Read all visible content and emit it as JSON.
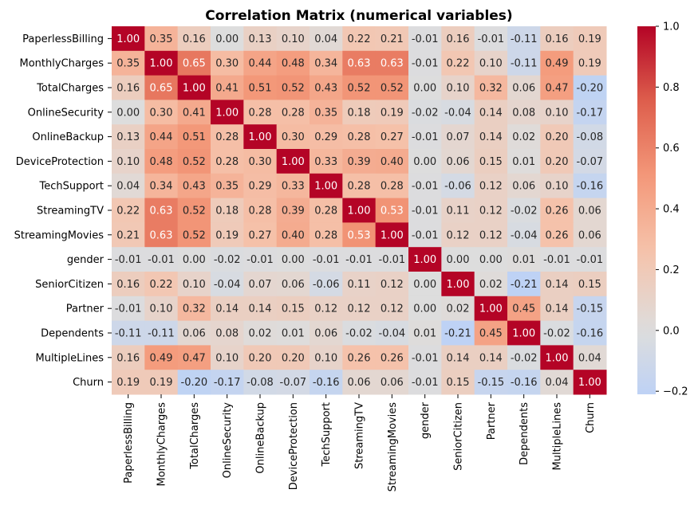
{
  "chart_data": {
    "type": "heatmap",
    "title": "Correlation Matrix (numerical variables)",
    "labels": [
      "PaperlessBilling",
      "MonthlyCharges",
      "TotalCharges",
      "OnlineSecurity",
      "OnlineBackup",
      "DeviceProtection",
      "TechSupport",
      "StreamingTV",
      "StreamingMovies",
      "gender",
      "SeniorCitizen",
      "Partner",
      "Dependents",
      "MultipleLines",
      "Churn"
    ],
    "values": [
      [
        1.0,
        0.35,
        0.16,
        -0.0,
        0.13,
        0.1,
        0.04,
        0.22,
        0.21,
        -0.01,
        0.16,
        -0.01,
        -0.11,
        0.16,
        0.19
      ],
      [
        0.35,
        1.0,
        0.65,
        0.3,
        0.44,
        0.48,
        0.34,
        0.63,
        0.63,
        -0.01,
        0.22,
        0.1,
        -0.11,
        0.49,
        0.19
      ],
      [
        0.16,
        0.65,
        1.0,
        0.41,
        0.51,
        0.52,
        0.43,
        0.52,
        0.52,
        -0.0,
        0.1,
        0.32,
        0.06,
        0.47,
        -0.2
      ],
      [
        -0.0,
        0.3,
        0.41,
        1.0,
        0.28,
        0.28,
        0.35,
        0.18,
        0.19,
        -0.02,
        -0.04,
        0.14,
        0.08,
        0.1,
        -0.17
      ],
      [
        0.13,
        0.44,
        0.51,
        0.28,
        1.0,
        0.3,
        0.29,
        0.28,
        0.27,
        -0.01,
        0.07,
        0.14,
        0.02,
        0.2,
        -0.08
      ],
      [
        0.1,
        0.48,
        0.52,
        0.28,
        0.3,
        1.0,
        0.33,
        0.39,
        0.4,
        -0.0,
        0.06,
        0.15,
        0.01,
        0.2,
        -0.07
      ],
      [
        0.04,
        0.34,
        0.43,
        0.35,
        0.29,
        0.33,
        1.0,
        0.28,
        0.28,
        -0.01,
        -0.06,
        0.12,
        0.06,
        0.1,
        -0.16
      ],
      [
        0.22,
        0.63,
        0.52,
        0.18,
        0.28,
        0.39,
        0.28,
        1.0,
        0.53,
        -0.01,
        0.11,
        0.12,
        -0.02,
        0.26,
        0.06
      ],
      [
        0.21,
        0.63,
        0.52,
        0.19,
        0.27,
        0.4,
        0.28,
        0.53,
        1.0,
        -0.01,
        0.12,
        0.12,
        -0.04,
        0.26,
        0.06
      ],
      [
        -0.01,
        -0.01,
        -0.0,
        -0.02,
        -0.01,
        -0.0,
        -0.01,
        -0.01,
        -0.01,
        1.0,
        -0.0,
        -0.0,
        0.01,
        -0.01,
        -0.01
      ],
      [
        0.16,
        0.22,
        0.1,
        -0.04,
        0.07,
        0.06,
        -0.06,
        0.11,
        0.12,
        -0.0,
        1.0,
        0.02,
        -0.21,
        0.14,
        0.15
      ],
      [
        -0.01,
        0.1,
        0.32,
        0.14,
        0.14,
        0.15,
        0.12,
        0.12,
        0.12,
        -0.0,
        0.02,
        1.0,
        0.45,
        0.14,
        -0.15
      ],
      [
        -0.11,
        -0.11,
        0.06,
        0.08,
        0.02,
        0.01,
        0.06,
        -0.02,
        -0.04,
        0.01,
        -0.21,
        0.45,
        1.0,
        -0.02,
        -0.16
      ],
      [
        0.16,
        0.49,
        0.47,
        0.1,
        0.2,
        0.2,
        0.1,
        0.26,
        0.26,
        -0.01,
        0.14,
        0.14,
        -0.02,
        1.0,
        0.04
      ],
      [
        0.19,
        0.19,
        -0.2,
        -0.17,
        -0.08,
        -0.07,
        -0.16,
        0.06,
        0.06,
        -0.01,
        0.15,
        -0.15,
        -0.16,
        0.04,
        1.0
      ]
    ],
    "colormap": "coolwarm",
    "center": 0,
    "vmin": -0.21,
    "vmax": 1.0,
    "colorbar_ticks": [
      "1.0",
      "0.8",
      "0.6",
      "0.4",
      "0.2",
      "0.0",
      "−0.2"
    ],
    "colorbar_tick_values": [
      1.0,
      0.8,
      0.6,
      0.4,
      0.2,
      0.0,
      -0.2
    ],
    "annotation_format": "0.00"
  }
}
